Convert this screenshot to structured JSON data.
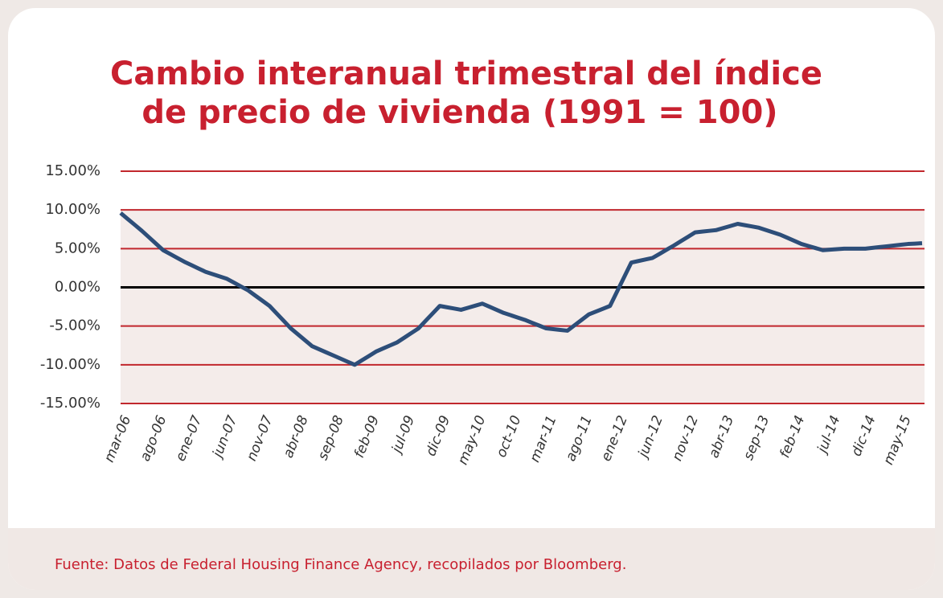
{
  "chart_data": {
    "type": "line",
    "title": [
      "Cambio interanual trimestral del índice",
      "de precio de vivienda (1991 = 100)"
    ],
    "source": "Fuente: Datos de Federal Housing Finance Agency, recopilados por Bloomberg.",
    "categories": [
      "mar-06",
      null,
      null,
      null,
      null,
      "ago-06",
      null,
      null,
      null,
      null,
      "ene-07",
      null,
      null,
      null,
      null,
      "jun-07",
      null,
      null,
      null,
      null,
      "nov-07",
      null,
      null,
      null,
      null,
      "abr-08",
      null,
      null,
      null,
      null,
      "sep-08",
      null,
      null,
      null,
      null,
      "feb-09",
      null,
      null,
      null,
      null,
      "jul-09",
      null,
      null,
      null,
      null,
      "dic-09",
      null,
      null,
      null,
      null,
      "may-10",
      null,
      null,
      null,
      null,
      "oct-10",
      null,
      null,
      null,
      null,
      "mar-11",
      null,
      null,
      null,
      null,
      "ago-11",
      null,
      null,
      null,
      null,
      "ene-12",
      null,
      null,
      null,
      null,
      "jun-12",
      null,
      null,
      null,
      null,
      "nov-12",
      null,
      null,
      null,
      null,
      "abr-13",
      null,
      null,
      null,
      null,
      "sep-13",
      null,
      null,
      null,
      null,
      "feb-14",
      null,
      null,
      null,
      null,
      "jul-14",
      null,
      null,
      null,
      null,
      "dic-14",
      null,
      null,
      null,
      null,
      "may-15",
      null,
      null,
      null
    ],
    "series": [
      {
        "color": "#2d4e79",
        "values": [
          9.6,
          8.83,
          8.07,
          7.3,
          6.47,
          5.63,
          4.8,
          4.3,
          3.8,
          3.3,
          2.87,
          2.43,
          2.0,
          1.7,
          1.4,
          1.1,
          0.6,
          0.1,
          -0.4,
          -1.07,
          -1.73,
          -2.4,
          -3.37,
          -4.33,
          -5.3,
          -6.07,
          -6.83,
          -7.6,
          -8.0,
          -8.4,
          -8.8,
          -9.2,
          -9.6,
          -10.0,
          -9.43,
          -8.87,
          -8.3,
          -7.9,
          -7.5,
          -7.1,
          -6.5,
          -5.9,
          -5.3,
          -4.33,
          -3.37,
          -2.4,
          -2.57,
          -2.73,
          -2.9,
          -2.63,
          -2.37,
          -2.1,
          -2.5,
          -2.9,
          -3.3,
          -3.6,
          -3.9,
          -4.2,
          -4.57,
          -4.93,
          -5.3,
          -5.4,
          -5.5,
          -5.6,
          -4.9,
          -4.2,
          -3.5,
          -3.13,
          -2.77,
          -2.4,
          -0.53,
          1.33,
          3.2,
          3.4,
          3.6,
          3.8,
          4.33,
          4.87,
          5.4,
          5.97,
          6.53,
          7.1,
          7.2,
          7.3,
          7.4,
          7.67,
          7.93,
          8.2,
          8.03,
          7.87,
          7.7,
          7.4,
          7.1,
          6.8,
          6.4,
          6.0,
          5.6,
          5.33,
          5.07,
          4.8,
          4.87,
          4.93,
          5.0,
          5.0,
          5.0,
          5.0,
          5.1,
          5.2,
          5.3,
          5.4,
          5.5,
          5.6,
          5.65,
          5.7
        ]
      }
    ],
    "ylim": [
      -15,
      15
    ],
    "yticks": [
      {
        "value": 15,
        "label": "15.00%"
      },
      {
        "value": 10,
        "label": "10.00%"
      },
      {
        "value": 5,
        "label": "5.00%"
      },
      {
        "value": 0,
        "label": "0.00%"
      },
      {
        "value": -5,
        "label": "-5.00%"
      },
      {
        "value": -10,
        "label": "-10.00%"
      },
      {
        "value": -15,
        "label": "-15.00%"
      }
    ],
    "grid": true,
    "grid_color": "#c1272d",
    "zero_line_color": "#000000"
  }
}
